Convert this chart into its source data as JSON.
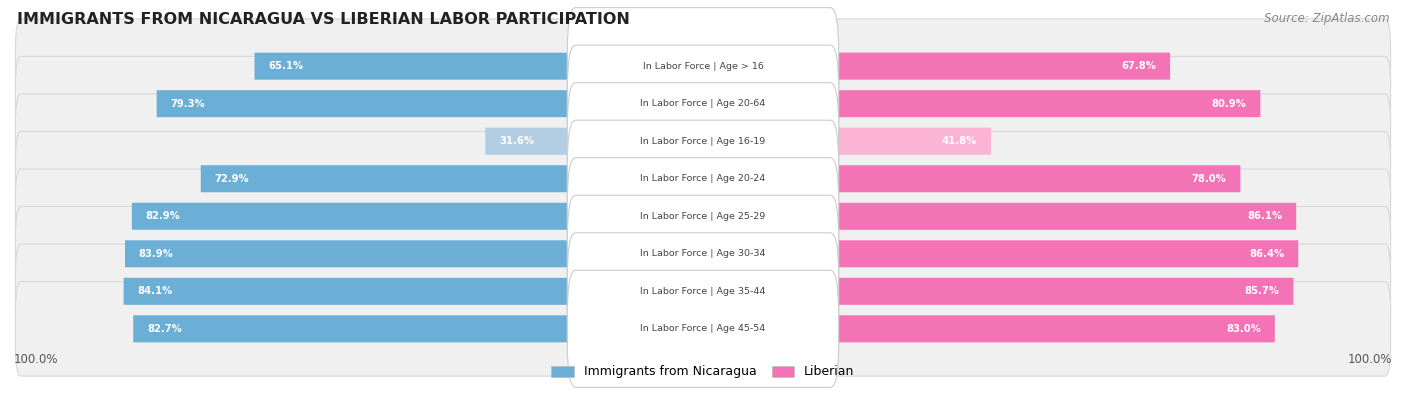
{
  "title": "IMMIGRANTS FROM NICARAGUA VS LIBERIAN LABOR PARTICIPATION",
  "source": "Source: ZipAtlas.com",
  "categories": [
    "In Labor Force | Age > 16",
    "In Labor Force | Age 20-64",
    "In Labor Force | Age 16-19",
    "In Labor Force | Age 20-24",
    "In Labor Force | Age 25-29",
    "In Labor Force | Age 30-34",
    "In Labor Force | Age 35-44",
    "In Labor Force | Age 45-54"
  ],
  "nicaragua_values": [
    65.1,
    79.3,
    31.6,
    72.9,
    82.9,
    83.9,
    84.1,
    82.7
  ],
  "liberian_values": [
    67.8,
    80.9,
    41.8,
    78.0,
    86.1,
    86.4,
    85.7,
    83.0
  ],
  "nicaragua_color": "#6baed6",
  "nicaragua_color_light": "#b3cde3",
  "liberian_color": "#f472b6",
  "liberian_color_light": "#fbb4d4",
  "row_bg_color": "#f0f0f0",
  "row_border_color": "#d8d8d8",
  "legend_nicaragua": "Immigrants from Nicaragua",
  "legend_liberian": "Liberian",
  "max_value": 100.0
}
